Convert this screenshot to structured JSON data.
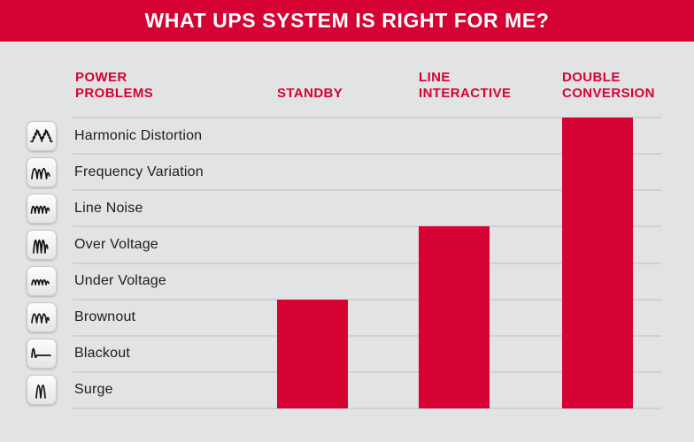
{
  "banner": {
    "title": "WHAT UPS SYSTEM IS RIGHT FOR ME?"
  },
  "columns": {
    "power_problems": "POWER\nPROBLEMS",
    "standby": "STANDBY",
    "line_interactive": "LINE\nINTERACTIVE",
    "double_conversion": "DOUBLE\nCONVERSION"
  },
  "rows": [
    {
      "label": "Harmonic Distortion",
      "icon": "harmonic-distortion-wave-icon"
    },
    {
      "label": "Frequency Variation",
      "icon": "frequency-variation-wave-icon"
    },
    {
      "label": "Line Noise",
      "icon": "line-noise-wave-icon"
    },
    {
      "label": "Over Voltage",
      "icon": "over-voltage-wave-icon"
    },
    {
      "label": "Under Voltage",
      "icon": "under-voltage-wave-icon"
    },
    {
      "label": "Brownout",
      "icon": "brownout-wave-icon"
    },
    {
      "label": "Blackout",
      "icon": "blackout-wave-icon"
    },
    {
      "label": "Surge",
      "icon": "surge-wave-icon"
    }
  ],
  "colors": {
    "accent_red": "#D50233",
    "background_gray": "#E2E3E4",
    "grid_line_gray": "#CFD1D3",
    "label_text": "#1C1C1C",
    "banner_text": "#FFFFFF"
  },
  "chart_data": {
    "type": "bar",
    "title": "WHAT UPS SYSTEM IS RIGHT FOR ME?",
    "categories": [
      "STANDBY",
      "LINE INTERACTIVE",
      "DOUBLE CONVERSION"
    ],
    "values": [
      3,
      5,
      8
    ],
    "value_meaning": "number of power problems protected against (rows covered by each red bar)",
    "row_categories": [
      "Harmonic Distortion",
      "Frequency Variation",
      "Line Noise",
      "Over Voltage",
      "Under Voltage",
      "Brownout",
      "Blackout",
      "Surge"
    ],
    "coverage": {
      "STANDBY": [
        "Brownout",
        "Blackout",
        "Surge"
      ],
      "LINE INTERACTIVE": [
        "Over Voltage",
        "Under Voltage",
        "Brownout",
        "Blackout",
        "Surge"
      ],
      "DOUBLE CONVERSION": [
        "Harmonic Distortion",
        "Frequency Variation",
        "Line Noise",
        "Over Voltage",
        "Under Voltage",
        "Brownout",
        "Blackout",
        "Surge"
      ]
    },
    "xlabel": "",
    "ylabel": "POWER PROBLEMS",
    "ylim": [
      0,
      8
    ],
    "grid": true,
    "legend_position": "none",
    "bar_color": "#D50233"
  }
}
